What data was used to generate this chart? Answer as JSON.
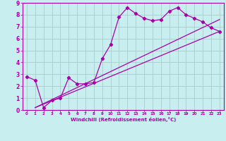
{
  "xlabel": "Windchill (Refroidissement éolien,°C)",
  "ylabel": "",
  "background_color": "#c8eef0",
  "line_color": "#aa00aa",
  "xlim": [
    -0.5,
    23.5
  ],
  "ylim": [
    0,
    9
  ],
  "xticks": [
    0,
    1,
    2,
    3,
    4,
    5,
    6,
    7,
    8,
    9,
    10,
    11,
    12,
    13,
    14,
    15,
    16,
    17,
    18,
    19,
    20,
    21,
    22,
    23
  ],
  "yticks": [
    0,
    1,
    2,
    3,
    4,
    5,
    6,
    7,
    8,
    9
  ],
  "series1_x": [
    0,
    1,
    2,
    3,
    4,
    5,
    6,
    7,
    8,
    9,
    10,
    11,
    12,
    13,
    14,
    15,
    16,
    17,
    18,
    19,
    20,
    21,
    22,
    23
  ],
  "series1_y": [
    2.8,
    2.5,
    0.2,
    0.8,
    1.0,
    2.7,
    2.2,
    2.2,
    2.3,
    4.3,
    5.5,
    7.8,
    8.6,
    8.1,
    7.7,
    7.5,
    7.6,
    8.3,
    8.6,
    8.0,
    7.7,
    7.4,
    6.9,
    6.6
  ],
  "series2_x": [
    1,
    23
  ],
  "series2_y": [
    0.2,
    6.6
  ],
  "series3_x": [
    1,
    23
  ],
  "series3_y": [
    0.2,
    7.6
  ],
  "grid_color": "#aacccc",
  "marker": "D",
  "markersize": 2.2,
  "linewidth": 0.9
}
